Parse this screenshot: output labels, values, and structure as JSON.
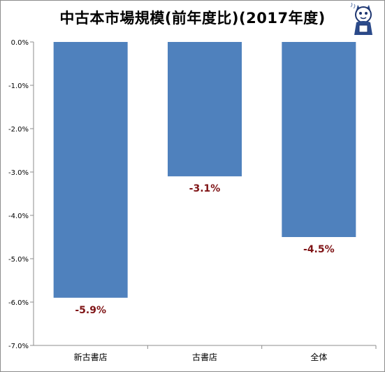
{
  "chart_data": {
    "type": "bar",
    "title": "中古本市場規模(前年度比)(2017年度)",
    "categories": [
      "新古書店",
      "古書店",
      "全体"
    ],
    "values": [
      -5.9,
      -3.1,
      -4.5
    ],
    "data_labels": [
      "-5.9%",
      "-3.1%",
      "-4.5%"
    ],
    "ylim": [
      -7.0,
      0.0
    ],
    "yticks": [
      "0.0%",
      "-1.0%",
      "-2.0%",
      "-3.0%",
      "-4.0%",
      "-5.0%",
      "-6.0%",
      "-7.0%"
    ],
    "ytick_values": [
      0,
      -1,
      -2,
      -3,
      -4,
      -5,
      -6,
      -7
    ],
    "grid": false,
    "legend": "none",
    "colors": {
      "bar": "#4f81bd",
      "data_label": "#7f1416",
      "axis": "#8c8c8c",
      "text": "#000000"
    }
  },
  "decoration": {
    "mascot_icon": "cat-mascot-icon"
  }
}
